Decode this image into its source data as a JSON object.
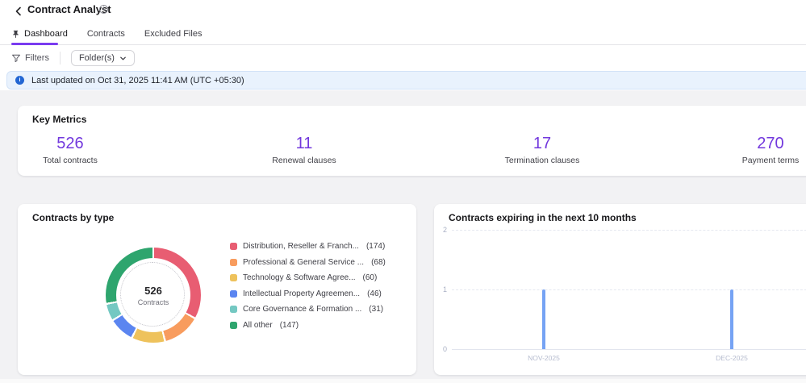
{
  "header": {
    "title": "Contract Analyst"
  },
  "tabs": {
    "dashboard": "Dashboard",
    "contracts": "Contracts",
    "excluded_files": "Excluded Files"
  },
  "toolbar": {
    "filters_label": "Filters",
    "folder_dropdown_label": "Folder(s)"
  },
  "banner": {
    "message": "Last updated on Oct 31, 2025 11:41 AM (UTC +05:30)"
  },
  "key_metrics": {
    "title": "Key Metrics",
    "items": [
      {
        "value": "526",
        "label": "Total contracts"
      },
      {
        "value": "11",
        "label": "Renewal clauses"
      },
      {
        "value": "17",
        "label": "Termination clauses"
      },
      {
        "value": "270",
        "label": "Payment terms"
      }
    ]
  },
  "contracts_by_type": {
    "title": "Contracts by type",
    "center_value": "526",
    "center_label": "Contracts",
    "legend": [
      {
        "label": "Distribution, Reseller & Franch...",
        "count": "(174)"
      },
      {
        "label": "Professional & General Service ...",
        "count": "(68)"
      },
      {
        "label": "Technology & Software Agree...",
        "count": "(60)"
      },
      {
        "label": "Intellectual Property Agreemen...",
        "count": "(46)"
      },
      {
        "label": "Core Governance & Formation ...",
        "count": "(31)"
      },
      {
        "label": "All other",
        "count": "(147)"
      }
    ]
  },
  "expiring_card": {
    "title": "Contracts expiring in the next 10 months"
  },
  "chart_data": [
    {
      "type": "pie",
      "title": "Contracts by type",
      "donut": true,
      "labels": [
        "Distribution, Reseller & Franch...",
        "Professional & General Service ...",
        "Technology & Software Agree...",
        "Intellectual Property Agreemen...",
        "Core Governance & Formation ...",
        "All other"
      ],
      "values": [
        174,
        68,
        60,
        46,
        31,
        147
      ],
      "colors": [
        "#e85d72",
        "#f89c5e",
        "#eec25c",
        "#5b85f0",
        "#74c8c2",
        "#2ea56e"
      ],
      "center_total": 526,
      "center_label": "Contracts",
      "legend_position": "right"
    },
    {
      "type": "bar",
      "title": "Contracts expiring in the next 10 months",
      "x": [
        "NOV-2025",
        "DEC-2025"
      ],
      "values": [
        1,
        1
      ],
      "ylim": [
        0,
        2
      ],
      "yticks": [
        0,
        1,
        2
      ],
      "bar_color": "#76a3f4",
      "grid": "dashed horizontal"
    }
  ],
  "colors": {
    "accent_purple": "#7a3bf0",
    "metric_value_purple": "#7238dd",
    "banner_bg": "#e9f2fd",
    "banner_icon_blue": "#2266d3",
    "page_bg": "#f2f2f4",
    "card_bg": "#ffffff",
    "bar_blue": "#76a3f4"
  }
}
